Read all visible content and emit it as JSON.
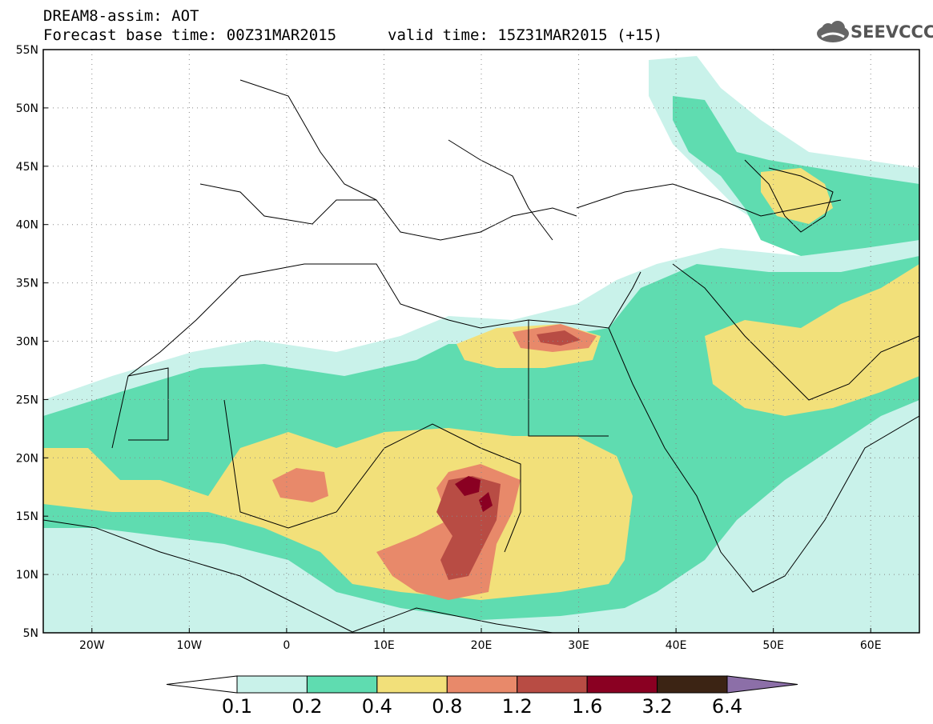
{
  "header": {
    "line1": "DREAM8-assim: AOT",
    "line2": "Forecast base time: 00Z31MAR2015",
    "valid": "valid time: 15Z31MAR2015 (+15)",
    "logo": "SEEVCCC"
  },
  "map": {
    "lon_range": [
      -25,
      65
    ],
    "lat_range": [
      5,
      55
    ],
    "lat_ticks": [
      "55N",
      "50N",
      "45N",
      "40N",
      "35N",
      "30N",
      "25N",
      "20N",
      "15N",
      "10N",
      "5N"
    ],
    "lon_ticks": [
      "20W",
      "10W",
      "0",
      "10E",
      "20E",
      "30E",
      "40E",
      "50E",
      "60E"
    ]
  },
  "colorbar": {
    "colors": [
      "#c9f2ea",
      "#5fdcb0",
      "#f2e07a",
      "#e8896a",
      "#b84c44",
      "#8a0022",
      "#3c2414",
      "#8c6fa8"
    ],
    "labels": [
      "0.1",
      "0.2",
      "0.4",
      "0.8",
      "1.2",
      "1.6",
      "3.2",
      "6.4"
    ]
  }
}
